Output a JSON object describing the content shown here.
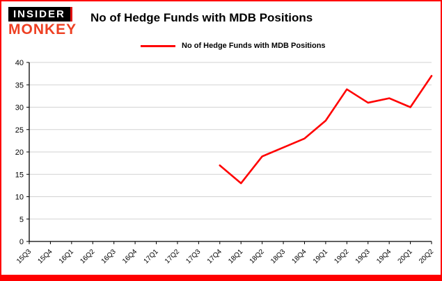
{
  "brand": {
    "line1": "INSIDER",
    "line2": "MONKEY"
  },
  "title": "No of Hedge Funds with MDB Positions",
  "legend": {
    "label": "No of Hedge Funds with MDB Positions",
    "color": "#ff0000"
  },
  "colors": {
    "frame_border": "#ff0000",
    "line": "#ff0000",
    "grid": "#d2d2d2",
    "axis": "#000000",
    "insider_bg": "#000000",
    "insider_text": "#ffffff",
    "monkey_text": "#ee4023"
  },
  "chart_data": {
    "type": "line",
    "title": "No of Hedge Funds with MDB Positions",
    "xlabel": "",
    "ylabel": "",
    "ylim": [
      0,
      40
    ],
    "yticks": [
      0,
      5,
      10,
      15,
      20,
      25,
      30,
      35,
      40
    ],
    "grid": true,
    "legend_position": "top-left",
    "categories": [
      "15Q3",
      "15Q4",
      "16Q1",
      "16Q2",
      "16Q3",
      "16Q4",
      "17Q1",
      "17Q2",
      "17Q3",
      "17Q4",
      "18Q1",
      "18Q2",
      "18Q3",
      "18Q4",
      "19Q1",
      "19Q2",
      "19Q3",
      "19Q4",
      "20Q1",
      "20Q2"
    ],
    "series": [
      {
        "name": "No of Hedge Funds with MDB Positions",
        "color": "#ff0000",
        "values": [
          null,
          null,
          null,
          null,
          null,
          null,
          null,
          null,
          null,
          17,
          13,
          19,
          21,
          23,
          27,
          34,
          31,
          32,
          30,
          37
        ]
      }
    ]
  }
}
